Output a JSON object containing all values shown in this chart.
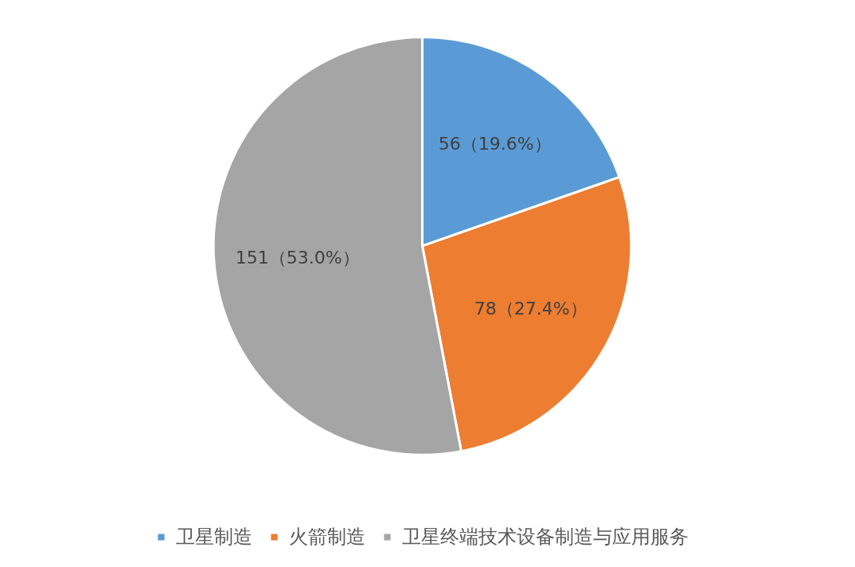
{
  "chart_data": {
    "type": "pie",
    "categories": [
      "卫星制造",
      "火箭制造",
      "卫星终端技术设备制造与应用服务"
    ],
    "values": [
      56,
      78,
      151
    ],
    "colors": [
      "#5b9bd5",
      "#ed7d31",
      "#a5a5a5"
    ],
    "value_labels": [
      "56（19.6%）",
      "78（27.4%）",
      "151（53.0%）"
    ],
    "legend": "bottom"
  }
}
